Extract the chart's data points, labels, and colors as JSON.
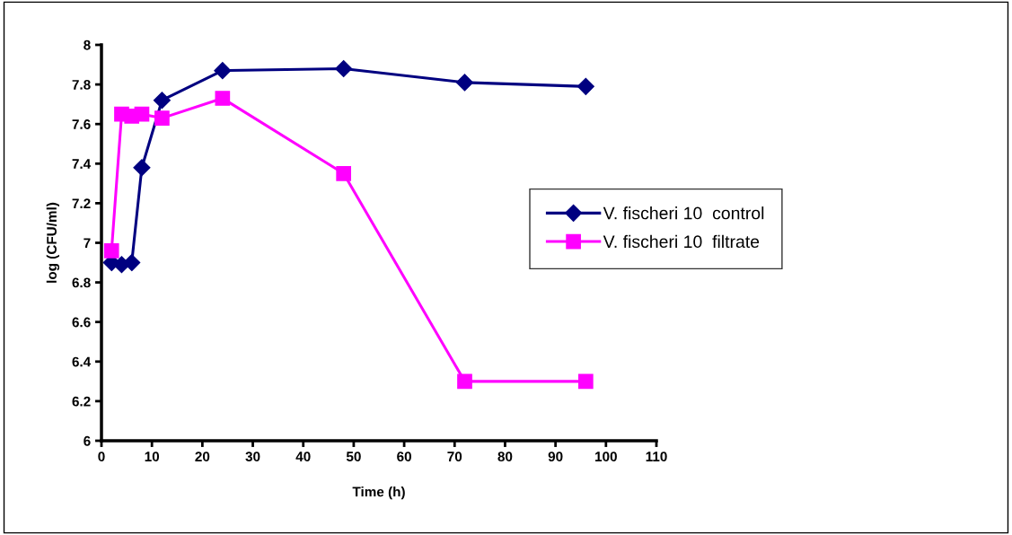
{
  "chart_data": {
    "type": "line",
    "xlabel": "Time (h)",
    "ylabel": "log (CFU/ml)",
    "xlim": [
      0,
      110
    ],
    "xticks": [
      0,
      10,
      20,
      30,
      40,
      50,
      60,
      70,
      80,
      90,
      100,
      110
    ],
    "ylim": [
      6,
      8
    ],
    "yticks": [
      6,
      6.2,
      6.4,
      6.6,
      6.8,
      7,
      7.2,
      7.4,
      7.6,
      7.8,
      8
    ],
    "grid": false,
    "legend": "right",
    "line_style": "solid",
    "series": [
      {
        "name": "V. fischeri 10  control",
        "color": "#000080",
        "marker": "diamond",
        "x": [
          2,
          4,
          6,
          8,
          12,
          24,
          48,
          72,
          96
        ],
        "values": [
          6.9,
          6.89,
          6.9,
          7.38,
          7.72,
          7.87,
          7.88,
          7.81,
          7.79
        ]
      },
      {
        "name": "V. fischeri 10  filtrate",
        "color": "#ff00ff",
        "marker": "square",
        "x": [
          2,
          4,
          6,
          8,
          12,
          24,
          48,
          72,
          96
        ],
        "values": [
          6.96,
          7.65,
          7.64,
          7.65,
          7.63,
          7.73,
          7.35,
          6.3,
          6.3
        ]
      }
    ]
  }
}
